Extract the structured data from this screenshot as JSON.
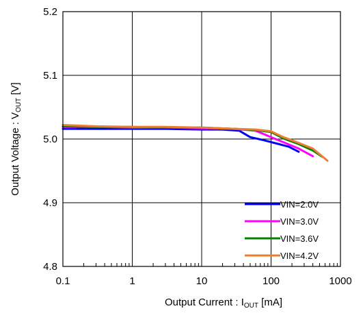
{
  "chart_data": {
    "type": "line",
    "xlabel": "Output Current : I",
    "xlabel_sub": "OUT",
    "xlabel_unit": " [mA]",
    "ylabel": "Output Voltage : V",
    "ylabel_sub": "OUT",
    "ylabel_unit": " [V]",
    "x_scale": "log",
    "xlim": [
      0.1,
      1000
    ],
    "ylim": [
      4.8,
      5.2
    ],
    "x_ticks": [
      0.1,
      1,
      10,
      100,
      1000
    ],
    "x_tick_labels": [
      "0.1",
      "1",
      "10",
      "100",
      "1000"
    ],
    "y_ticks": [
      4.8,
      4.9,
      5.0,
      5.1,
      5.2
    ],
    "y_tick_labels": [
      "4.8",
      "4.9",
      "5.0",
      "5.1",
      "5.2"
    ],
    "grid": true,
    "legend_position": "bottom-right",
    "series": [
      {
        "name": "VIN=2.0V",
        "color": "#0000ff",
        "x": [
          0.1,
          0.3,
          1,
          3,
          10,
          20,
          35,
          50,
          80,
          120,
          180,
          250
        ],
        "y": [
          5.016,
          5.016,
          5.016,
          5.016,
          5.015,
          5.015,
          5.013,
          5.003,
          4.998,
          4.993,
          4.988,
          4.98
        ]
      },
      {
        "name": "VIN=3.0V",
        "color": "#ff00ff",
        "x": [
          0.1,
          0.3,
          1,
          3,
          10,
          30,
          60,
          100,
          150,
          250,
          400
        ],
        "y": [
          5.019,
          5.019,
          5.018,
          5.018,
          5.017,
          5.016,
          5.013,
          5.003,
          4.995,
          4.985,
          4.973
        ]
      },
      {
        "name": "VIN=3.6V",
        "color": "#008000",
        "x": [
          0.1,
          0.3,
          1,
          3,
          10,
          30,
          60,
          100,
          150,
          250,
          400,
          550
        ],
        "y": [
          5.02,
          5.019,
          5.019,
          5.018,
          5.018,
          5.016,
          5.014,
          5.011,
          5.001,
          4.992,
          4.982,
          4.972
        ]
      },
      {
        "name": "VIN=4.2V",
        "color": "#ed7d31",
        "x": [
          0.1,
          0.3,
          1,
          3,
          10,
          30,
          60,
          100,
          150,
          250,
          400,
          650
        ],
        "y": [
          5.022,
          5.02,
          5.019,
          5.019,
          5.018,
          5.016,
          5.015,
          5.012,
          5.003,
          4.994,
          4.985,
          4.966
        ]
      }
    ]
  }
}
